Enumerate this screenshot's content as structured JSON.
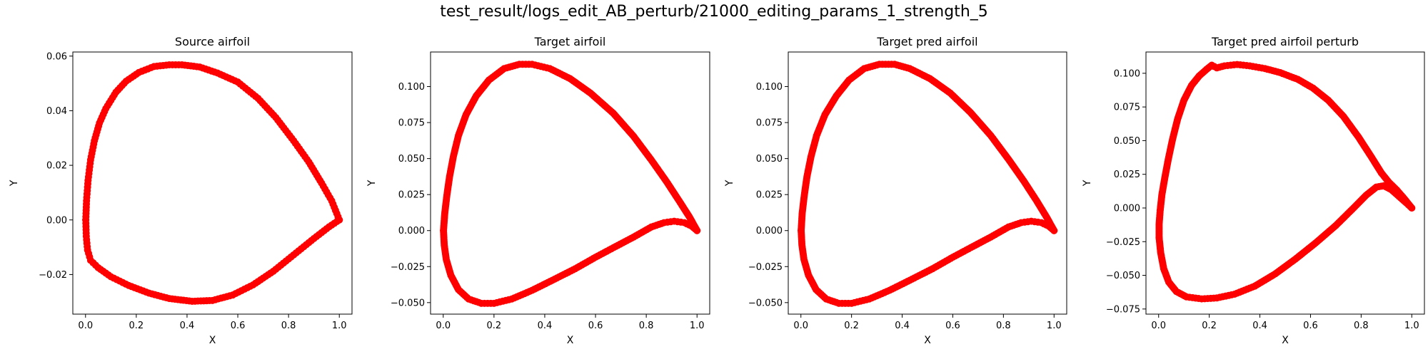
{
  "figure": {
    "suptitle": "test_result/logs_edit_AB_perturb/21000_editing_params_1_strength_5"
  },
  "chart_data": [
    {
      "type": "scatter",
      "title": "Source airfoil",
      "xlabel": "X",
      "ylabel": "Y",
      "xlim": [
        -0.05,
        1.05
      ],
      "ylim": [
        -0.0345,
        0.0615
      ],
      "xticks": [
        0.0,
        0.2,
        0.4,
        0.6,
        0.8,
        1.0
      ],
      "xtick_labels": [
        "0.0",
        "0.2",
        "0.4",
        "0.6",
        "0.8",
        "1.0"
      ],
      "yticks": [
        -0.02,
        0.0,
        0.02,
        0.04,
        0.06
      ],
      "ytick_labels": [
        "−0.02",
        "0.00",
        "0.02",
        "0.04",
        "0.06"
      ],
      "marker_color": "#ff0000",
      "upper": [
        [
          1.0,
          0.0
        ],
        [
          0.97,
          0.007
        ],
        [
          0.93,
          0.0135
        ],
        [
          0.88,
          0.0212
        ],
        [
          0.82,
          0.029
        ],
        [
          0.75,
          0.0375
        ],
        [
          0.68,
          0.0445
        ],
        [
          0.6,
          0.0505
        ],
        [
          0.52,
          0.0538
        ],
        [
          0.45,
          0.056
        ],
        [
          0.38,
          0.0568
        ],
        [
          0.33,
          0.0568
        ],
        [
          0.27,
          0.0562
        ],
        [
          0.21,
          0.054
        ],
        [
          0.16,
          0.0508
        ],
        [
          0.12,
          0.0468
        ],
        [
          0.08,
          0.0408
        ],
        [
          0.055,
          0.0355
        ],
        [
          0.035,
          0.029
        ],
        [
          0.02,
          0.022
        ],
        [
          0.01,
          0.0145
        ],
        [
          0.004,
          0.007
        ],
        [
          0.001,
          0.0
        ]
      ],
      "lower": [
        [
          0.001,
          0.0
        ],
        [
          0.003,
          -0.006
        ],
        [
          0.008,
          -0.011
        ],
        [
          0.02,
          -0.0148
        ],
        [
          0.05,
          -0.0175
        ],
        [
          0.1,
          -0.0208
        ],
        [
          0.17,
          -0.024
        ],
        [
          0.25,
          -0.0268
        ],
        [
          0.33,
          -0.0288
        ],
        [
          0.42,
          -0.0298
        ],
        [
          0.5,
          -0.0295
        ],
        [
          0.58,
          -0.0275
        ],
        [
          0.66,
          -0.0238
        ],
        [
          0.74,
          -0.0188
        ],
        [
          0.82,
          -0.0128
        ],
        [
          0.9,
          -0.0068
        ],
        [
          0.96,
          -0.0025
        ],
        [
          1.0,
          0.0
        ]
      ]
    },
    {
      "type": "scatter",
      "title": "Target airfoil",
      "xlabel": "X",
      "ylabel": "Y",
      "xlim": [
        -0.05,
        1.05
      ],
      "ylim": [
        -0.058,
        0.124
      ],
      "xticks": [
        0.0,
        0.2,
        0.4,
        0.6,
        0.8,
        1.0
      ],
      "xtick_labels": [
        "0.0",
        "0.2",
        "0.4",
        "0.6",
        "0.8",
        "1.0"
      ],
      "yticks": [
        -0.05,
        -0.025,
        0.0,
        0.025,
        0.05,
        0.075,
        0.1
      ],
      "ytick_labels": [
        "−0.050",
        "−0.025",
        "0.000",
        "0.025",
        "0.050",
        "0.075",
        "0.100"
      ],
      "marker_color": "#ff0000",
      "upper": [
        [
          1.0,
          0.0
        ],
        [
          0.97,
          0.0095
        ],
        [
          0.93,
          0.0205
        ],
        [
          0.88,
          0.034
        ],
        [
          0.82,
          0.049
        ],
        [
          0.75,
          0.0655
        ],
        [
          0.67,
          0.0815
        ],
        [
          0.58,
          0.0955
        ],
        [
          0.5,
          0.1055
        ],
        [
          0.42,
          0.1125
        ],
        [
          0.35,
          0.1155
        ],
        [
          0.3,
          0.1155
        ],
        [
          0.24,
          0.1125
        ],
        [
          0.18,
          0.1045
        ],
        [
          0.13,
          0.0935
        ],
        [
          0.09,
          0.0805
        ],
        [
          0.06,
          0.066
        ],
        [
          0.04,
          0.0515
        ],
        [
          0.025,
          0.0375
        ],
        [
          0.014,
          0.024
        ],
        [
          0.006,
          0.012
        ],
        [
          0.001,
          0.0
        ]
      ],
      "lower": [
        [
          0.001,
          0.0
        ],
        [
          0.004,
          -0.01
        ],
        [
          0.012,
          -0.02
        ],
        [
          0.03,
          -0.031
        ],
        [
          0.06,
          -0.041
        ],
        [
          0.1,
          -0.0475
        ],
        [
          0.15,
          -0.0505
        ],
        [
          0.2,
          -0.0505
        ],
        [
          0.27,
          -0.0475
        ],
        [
          0.35,
          -0.0415
        ],
        [
          0.43,
          -0.0345
        ],
        [
          0.52,
          -0.0265
        ],
        [
          0.6,
          -0.0185
        ],
        [
          0.68,
          -0.011
        ],
        [
          0.75,
          -0.0045
        ],
        [
          0.82,
          0.0025
        ],
        [
          0.87,
          0.0055
        ],
        [
          0.91,
          0.0065
        ],
        [
          0.95,
          0.0055
        ],
        [
          0.98,
          0.003
        ],
        [
          1.0,
          0.0
        ]
      ]
    },
    {
      "type": "scatter",
      "title": "Target pred airfoil",
      "xlabel": "X",
      "ylabel": "Y",
      "xlim": [
        -0.05,
        1.05
      ],
      "ylim": [
        -0.058,
        0.124
      ],
      "xticks": [
        0.0,
        0.2,
        0.4,
        0.6,
        0.8,
        1.0
      ],
      "xtick_labels": [
        "0.0",
        "0.2",
        "0.4",
        "0.6",
        "0.8",
        "1.0"
      ],
      "yticks": [
        -0.05,
        -0.025,
        0.0,
        0.025,
        0.05,
        0.075,
        0.1
      ],
      "ytick_labels": [
        "−0.050",
        "−0.025",
        "0.000",
        "0.025",
        "0.050",
        "0.075",
        "0.100"
      ],
      "marker_color": "#ff0000",
      "upper": [
        [
          1.0,
          0.0
        ],
        [
          0.97,
          0.0095
        ],
        [
          0.93,
          0.021
        ],
        [
          0.88,
          0.0345
        ],
        [
          0.82,
          0.0495
        ],
        [
          0.75,
          0.066
        ],
        [
          0.67,
          0.082
        ],
        [
          0.59,
          0.0955
        ],
        [
          0.51,
          0.1055
        ],
        [
          0.43,
          0.1125
        ],
        [
          0.37,
          0.1155
        ],
        [
          0.31,
          0.1155
        ],
        [
          0.25,
          0.1125
        ],
        [
          0.19,
          0.1045
        ],
        [
          0.14,
          0.0935
        ],
        [
          0.095,
          0.0805
        ],
        [
          0.062,
          0.066
        ],
        [
          0.04,
          0.0515
        ],
        [
          0.024,
          0.0375
        ],
        [
          0.013,
          0.024
        ],
        [
          0.005,
          0.012
        ],
        [
          0.001,
          0.0
        ]
      ],
      "lower": [
        [
          0.001,
          0.0
        ],
        [
          0.004,
          -0.01
        ],
        [
          0.012,
          -0.02
        ],
        [
          0.03,
          -0.031
        ],
        [
          0.06,
          -0.041
        ],
        [
          0.1,
          -0.0475
        ],
        [
          0.15,
          -0.0505
        ],
        [
          0.2,
          -0.0505
        ],
        [
          0.27,
          -0.0475
        ],
        [
          0.35,
          -0.0415
        ],
        [
          0.43,
          -0.0345
        ],
        [
          0.52,
          -0.0265
        ],
        [
          0.6,
          -0.0185
        ],
        [
          0.68,
          -0.011
        ],
        [
          0.75,
          -0.0045
        ],
        [
          0.82,
          0.0025
        ],
        [
          0.87,
          0.0055
        ],
        [
          0.91,
          0.0065
        ],
        [
          0.95,
          0.0055
        ],
        [
          0.98,
          0.003
        ],
        [
          1.0,
          0.0
        ]
      ]
    },
    {
      "type": "scatter",
      "title": "Target pred airfoil perturb",
      "xlabel": "X",
      "ylabel": "Y",
      "xlim": [
        -0.05,
        1.05
      ],
      "ylim": [
        -0.0788,
        0.1158
      ],
      "xticks": [
        0.0,
        0.2,
        0.4,
        0.6,
        0.8,
        1.0
      ],
      "xtick_labels": [
        "0.0",
        "0.2",
        "0.4",
        "0.6",
        "0.8",
        "1.0"
      ],
      "yticks": [
        -0.075,
        -0.05,
        -0.025,
        0.0,
        0.025,
        0.05,
        0.075,
        0.1
      ],
      "ytick_labels": [
        "−0.075",
        "−0.050",
        "−0.025",
        "0.000",
        "0.025",
        "0.050",
        "0.075",
        "0.100"
      ],
      "marker_color": "#ff0000",
      "upper": [
        [
          1.0,
          0.0
        ],
        [
          0.97,
          0.007
        ],
        [
          0.94,
          0.0135
        ],
        [
          0.91,
          0.019
        ],
        [
          0.88,
          0.026
        ],
        [
          0.84,
          0.038
        ],
        [
          0.79,
          0.0525
        ],
        [
          0.73,
          0.068
        ],
        [
          0.67,
          0.08
        ],
        [
          0.61,
          0.089
        ],
        [
          0.55,
          0.0955
        ],
        [
          0.48,
          0.1005
        ],
        [
          0.42,
          0.1035
        ],
        [
          0.36,
          0.1055
        ],
        [
          0.31,
          0.1065
        ],
        [
          0.26,
          0.1055
        ],
        [
          0.23,
          0.104
        ],
        [
          0.21,
          0.106
        ],
        [
          0.19,
          0.103
        ],
        [
          0.16,
          0.098
        ],
        [
          0.13,
          0.091
        ],
        [
          0.1,
          0.08
        ],
        [
          0.075,
          0.066
        ],
        [
          0.055,
          0.051
        ],
        [
          0.038,
          0.036
        ],
        [
          0.024,
          0.022
        ],
        [
          0.013,
          0.01
        ],
        [
          0.006,
          -0.002
        ],
        [
          0.002,
          -0.012
        ],
        [
          0.002,
          -0.022
        ]
      ],
      "lower": [
        [
          0.002,
          -0.022
        ],
        [
          0.008,
          -0.033
        ],
        [
          0.02,
          -0.045
        ],
        [
          0.04,
          -0.055
        ],
        [
          0.07,
          -0.062
        ],
        [
          0.11,
          -0.066
        ],
        [
          0.17,
          -0.0675
        ],
        [
          0.23,
          -0.0668
        ],
        [
          0.3,
          -0.064
        ],
        [
          0.38,
          -0.058
        ],
        [
          0.46,
          -0.049
        ],
        [
          0.54,
          -0.038
        ],
        [
          0.62,
          -0.026
        ],
        [
          0.7,
          -0.013
        ],
        [
          0.77,
          0.0
        ],
        [
          0.82,
          0.0095
        ],
        [
          0.86,
          0.0155
        ],
        [
          0.89,
          0.0165
        ],
        [
          0.92,
          0.0135
        ],
        [
          0.95,
          0.0085
        ],
        [
          0.98,
          0.0035
        ],
        [
          1.0,
          0.0
        ]
      ]
    }
  ]
}
